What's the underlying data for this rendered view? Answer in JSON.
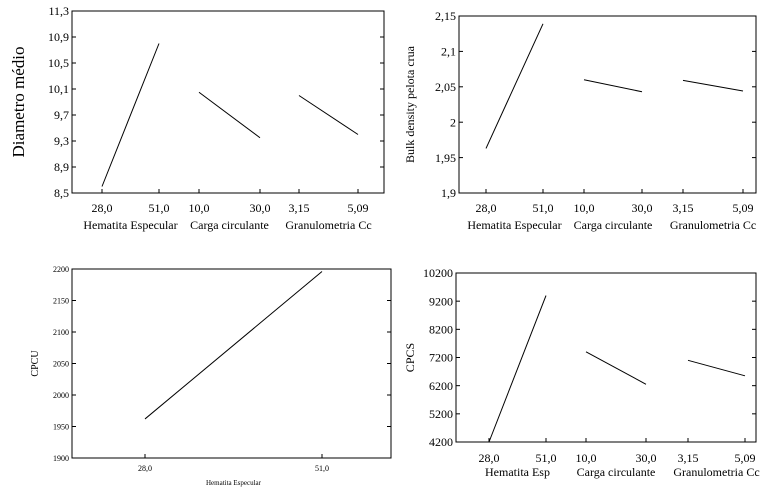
{
  "chart_data": [
    {
      "type": "line",
      "ylabel": "Diametro médio",
      "ylim": [
        8.5,
        11.3
      ],
      "yticks": [
        "8,5",
        "8,9",
        "9,3",
        "9,7",
        "10,1",
        "10,5",
        "10,9",
        "11,3"
      ],
      "factors": [
        {
          "name": "Hematita Especular",
          "levels": [
            "28,0",
            "51,0"
          ],
          "values": [
            8.6,
            10.8
          ]
        },
        {
          "name": "Carga circulante",
          "levels": [
            "10,0",
            "30,0"
          ],
          "values": [
            10.05,
            9.35
          ]
        },
        {
          "name": "Granulometria Cc",
          "levels": [
            "3,15",
            "5,09"
          ],
          "values": [
            10.0,
            9.4
          ]
        }
      ]
    },
    {
      "type": "line",
      "ylabel": "Bulk density pelota crua",
      "ylim": [
        1.9,
        2.15
      ],
      "yticks": [
        "1,9",
        "1,95",
        "2",
        "2,05",
        "2,1",
        "2,15"
      ],
      "factors": [
        {
          "name": "Hematita Especular",
          "levels": [
            "28,0",
            "51,0"
          ],
          "values": [
            1.963,
            2.139
          ]
        },
        {
          "name": "Carga circulante",
          "levels": [
            "10,0",
            "30,0"
          ],
          "values": [
            2.06,
            2.043
          ]
        },
        {
          "name": "Granulometria Cc",
          "levels": [
            "3,15",
            "5,09"
          ],
          "values": [
            2.059,
            2.044
          ]
        }
      ]
    },
    {
      "type": "line",
      "ylabel": "CPCU",
      "ylim": [
        1900,
        2200
      ],
      "yticks": [
        "1900",
        "1950",
        "2000",
        "2050",
        "2100",
        "2150",
        "2200"
      ],
      "factors": [
        {
          "name": "Hematita Especular",
          "levels": [
            "28,0",
            "51,0"
          ],
          "values": [
            1962,
            2196
          ]
        }
      ]
    },
    {
      "type": "line",
      "ylabel": "CPCS",
      "ylim": [
        4200,
        10200
      ],
      "yticks": [
        "4200",
        "5200",
        "6200",
        "7200",
        "8200",
        "9200",
        "10200"
      ],
      "factors": [
        {
          "name": "Hematita Esp",
          "levels": [
            "28,0",
            "51,0"
          ],
          "values": [
            4200,
            9400
          ]
        },
        {
          "name": "Carga circulante",
          "levels": [
            "10,0",
            "30,0"
          ],
          "values": [
            7400,
            6250
          ]
        },
        {
          "name": "Granulometria Cc",
          "levels": [
            "3,15",
            "5,09"
          ],
          "values": [
            7100,
            6550
          ]
        }
      ]
    }
  ]
}
